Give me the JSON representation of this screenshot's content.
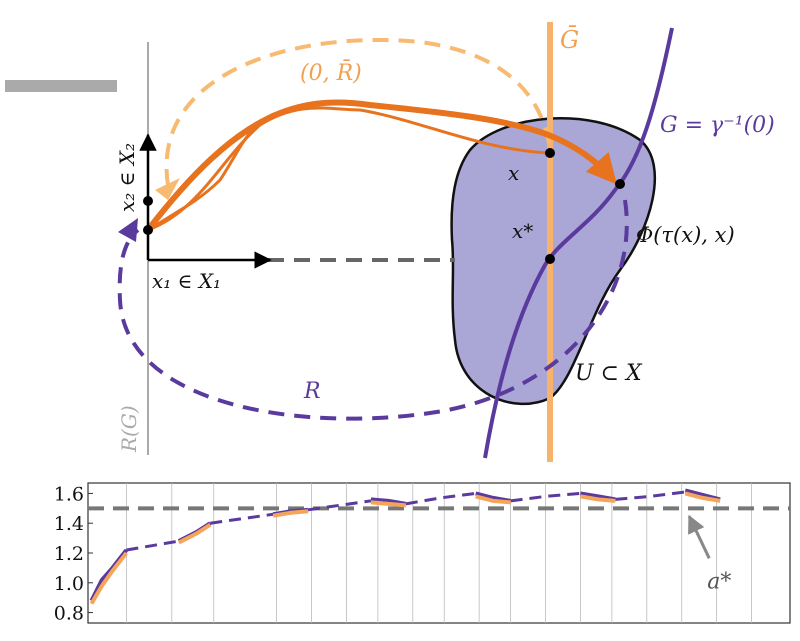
{
  "diagram": {
    "labels": {
      "rbar": "(0, R̄)",
      "gbar": "Ḡ",
      "g_def": "G = γ⁻¹(0)",
      "x": "x",
      "xstar": "x*",
      "phi": "Φ(τ(x), x)",
      "u": "U ⊂ X",
      "r": "R",
      "rg": "R(G)",
      "x2": "x₂ ∈ X₂",
      "x1": "x₁ ∈ X₁"
    }
  },
  "chart_data": {
    "type": "line",
    "x": [
      0,
      0.3,
      0.6,
      1,
      1.75,
      2.5,
      3,
      3.4,
      4.3,
      5.2,
      5.7,
      6.2,
      7.1,
      8,
      8.5,
      9,
      10,
      11,
      11.5,
      12,
      13,
      14,
      14.5,
      15,
      16,
      17,
      17.5,
      18
    ],
    "series": [
      {
        "color": "#5b3a9e",
        "style": "dashed",
        "values": [
          null,
          null,
          null,
          1.22,
          1.25,
          1.28,
          null,
          1.4,
          1.43,
          1.46,
          null,
          1.49,
          1.52,
          1.55,
          null,
          1.53,
          1.57,
          1.6,
          null,
          1.55,
          1.58,
          1.6,
          null,
          1.56,
          1.58,
          1.61,
          null,
          null
        ]
      },
      {
        "color": "#5b3a9e",
        "style": "solid",
        "values": [
          0.88,
          1.02,
          1.1,
          1.22,
          null,
          1.28,
          1.34,
          1.4,
          null,
          1.46,
          1.48,
          1.49,
          null,
          1.56,
          1.55,
          1.53,
          null,
          1.6,
          1.57,
          1.55,
          null,
          1.6,
          1.58,
          1.56,
          null,
          1.62,
          1.59,
          1.56
        ]
      },
      {
        "color": "#f5a55a",
        "style": "solid",
        "values": [
          0.86,
          0.98,
          1.08,
          1.2,
          null,
          1.27,
          1.33,
          1.39,
          null,
          1.45,
          1.47,
          1.48,
          null,
          1.54,
          1.53,
          1.52,
          null,
          1.58,
          1.55,
          1.54,
          null,
          1.58,
          1.56,
          1.55,
          null,
          1.6,
          1.57,
          1.55
        ]
      }
    ],
    "xlim": [
      -0.1,
      20
    ],
    "xticks": [
      1,
      2.3,
      3.5,
      5.3,
      6.3,
      7.3,
      8.2,
      9.2,
      10.1,
      11.1,
      12,
      13,
      14,
      14.9,
      15.9,
      16.9,
      17.9,
      18.9
    ],
    "ylim": [
      0.73,
      1.67
    ],
    "yticks": [
      {
        "value": 0.8,
        "label": "0.8"
      },
      {
        "value": 1,
        "label": "1.0"
      },
      1.2,
      1.4,
      1.6
    ],
    "reference_line": {
      "value": 1.5,
      "color": "#777777"
    },
    "annotation": {
      "text": "a*",
      "x": 17,
      "y": 1.5
    },
    "grid": true
  }
}
